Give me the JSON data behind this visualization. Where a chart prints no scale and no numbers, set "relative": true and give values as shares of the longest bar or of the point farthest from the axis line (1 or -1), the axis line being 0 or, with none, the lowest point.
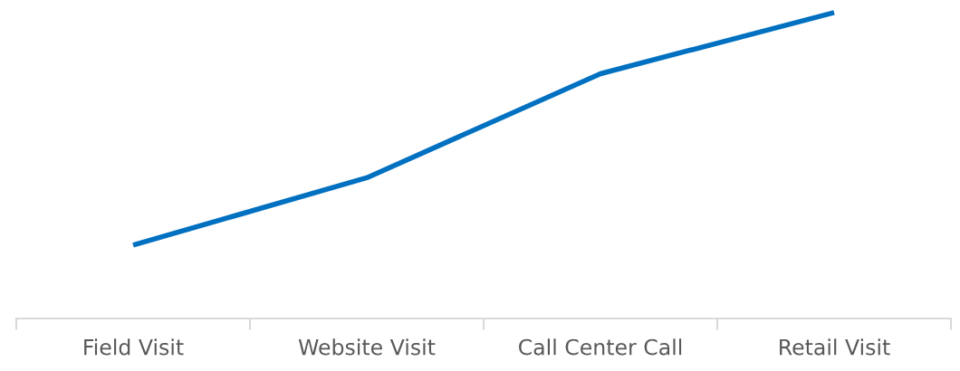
{
  "chart_data": {
    "type": "line",
    "relative": true,
    "categories": [
      "Field Visit",
      "Website Visit",
      "Call Center Call",
      "Retail Visit"
    ],
    "series": [
      {
        "color": "#0070c0",
        "values": [
          0.24,
          0.46,
          0.8,
          1
        ]
      }
    ]
  }
}
